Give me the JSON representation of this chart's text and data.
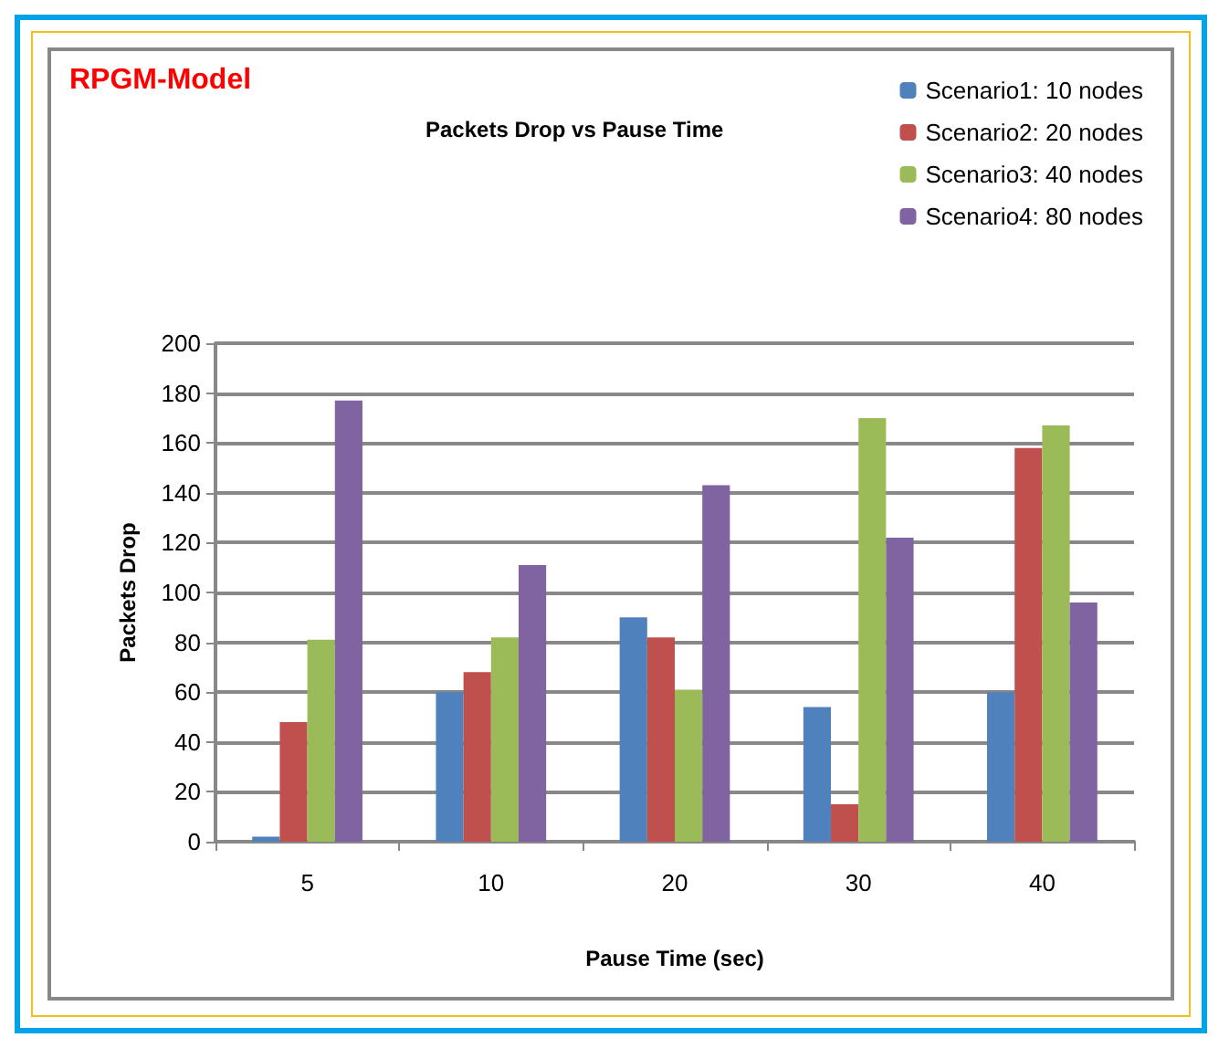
{
  "chart_data": {
    "type": "bar",
    "title": "Packets Drop vs Pause Time",
    "xlabel": "Pause Time (sec)",
    "ylabel": "Packets Drop",
    "annotations": [
      "RPGM-Model"
    ],
    "categories": [
      "5",
      "10",
      "20",
      "30",
      "40"
    ],
    "series": [
      {
        "name": "Scenario1: 10 nodes",
        "color": "#4f81bd",
        "values": [
          2,
          60,
          90,
          54,
          60
        ]
      },
      {
        "name": "Scenario2: 20 nodes",
        "color": "#c0504d",
        "values": [
          48,
          68,
          82,
          15,
          158
        ]
      },
      {
        "name": "Scenario3: 40 nodes",
        "color": "#9bbb59",
        "values": [
          81,
          82,
          61,
          170,
          167
        ]
      },
      {
        "name": "Scenario4: 80 nodes",
        "color": "#8064a2",
        "values": [
          177,
          111,
          143,
          122,
          96
        ]
      }
    ],
    "ylim": [
      0,
      200
    ],
    "yticks": [
      0,
      20,
      40,
      60,
      80,
      100,
      120,
      140,
      160,
      180,
      200
    ],
    "grid": "y",
    "legend": "top right"
  }
}
